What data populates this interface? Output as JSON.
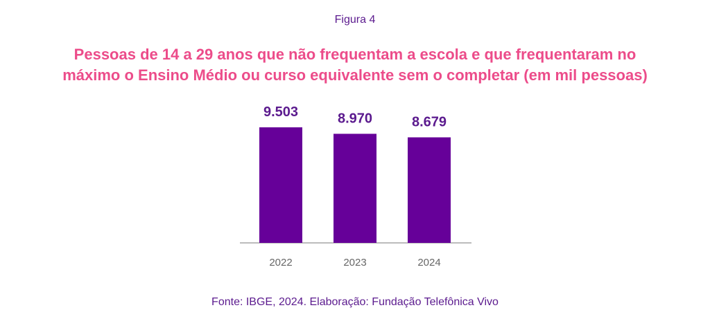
{
  "figure_label": "Figura 4",
  "source": "Fonte: IBGE, 2024. Elaboração: Fundação Telefônica Vivo",
  "colors": {
    "bar": "#660099",
    "title": "#ec4c8a",
    "value_label": "#5b1a8e",
    "tick_label": "#666666",
    "axis": "#bbbbbb"
  },
  "chart_data": {
    "type": "bar",
    "title_lines": [
      "Pessoas de 14 a 29 anos que não frequentam a escola e que frequentaram no",
      "máximo o Ensino Médio ou curso equivalente sem o completar (em mil pessoas)"
    ],
    "categories": [
      "2022",
      "2023",
      "2024"
    ],
    "values": [
      9503,
      8970,
      8679
    ],
    "value_labels": [
      "9.503",
      "8.970",
      "8.679"
    ],
    "xlabel": "",
    "ylabel": "",
    "ylim": [
      0,
      9503
    ],
    "grid": false,
    "legend": "none"
  }
}
